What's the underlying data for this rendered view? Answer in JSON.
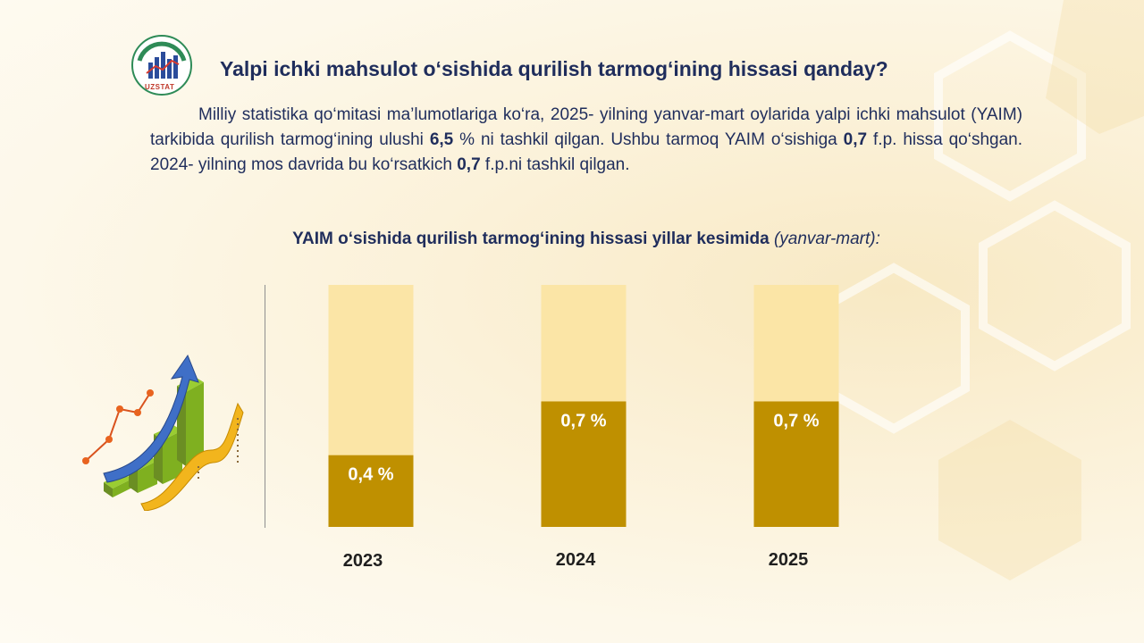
{
  "header": {
    "logo_text": "UZSTAT",
    "title": "Yalpi ichki mahsulot o‘sishida qurilish tarmog‘ining hissasi qanday?"
  },
  "paragraph": {
    "p1": "Milliy statistika qo‘mitasi ma’lumotlariga ko‘ra, 2025- yilning yanvar-mart oylarida yalpi ichki mahsulot (YAIM) tarkibida qurilish tarmog‘ining ulushi ",
    "v1": "6,5",
    "p2": " % ni tashkil qilgan. Ushbu tarmoq YAIM o‘sishiga ",
    "v2": "0,7",
    "p3": " f.p. hissa qo‘shgan. 2024- yilning mos davrida bu ko‘rsatkich ",
    "v3": "0,7",
    "p4": " f.p.ni tashkil qilgan."
  },
  "chart_data": {
    "type": "bar",
    "title": "YAIM o‘sishida qurilish tarmog‘ining hissasi yillar kesimida",
    "title_suffix": "(yanvar-mart):",
    "categories": [
      "2023",
      "2024",
      "2025"
    ],
    "values": [
      0.4,
      0.7,
      0.7
    ],
    "value_labels": [
      "0,4 %",
      "0,7 %",
      "0,7 %"
    ],
    "ylim": [
      0,
      1.35
    ],
    "colors": {
      "bar": "#bf9000",
      "track": "#fbe5a6",
      "label": "#ffffff",
      "category": "#1f1f1f"
    }
  }
}
